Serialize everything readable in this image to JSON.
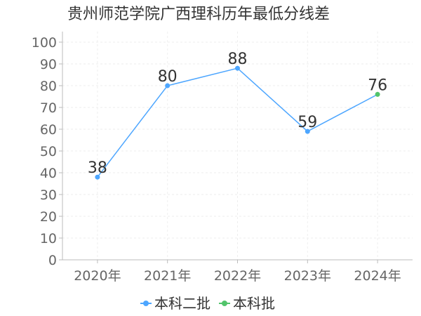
{
  "chart_data": {
    "type": "line",
    "title": "贵州师范学院广西理科历年最低分线差",
    "categories": [
      "2020年",
      "2021年",
      "2022年",
      "2023年",
      "2024年"
    ],
    "ylim": [
      0,
      100
    ],
    "yticks": [
      0,
      10,
      20,
      30,
      40,
      50,
      60,
      70,
      80,
      90,
      100
    ],
    "grid": true,
    "legend_position": "bottom-center",
    "series": [
      {
        "name": "本科二批",
        "color": "#4da6ff",
        "values": [
          38,
          80,
          88,
          59,
          null
        ]
      },
      {
        "name": "本科批",
        "color": "#52c46b",
        "values": [
          null,
          null,
          null,
          null,
          76
        ]
      }
    ],
    "connect_series": true,
    "connector_color": "#4da6ff"
  }
}
